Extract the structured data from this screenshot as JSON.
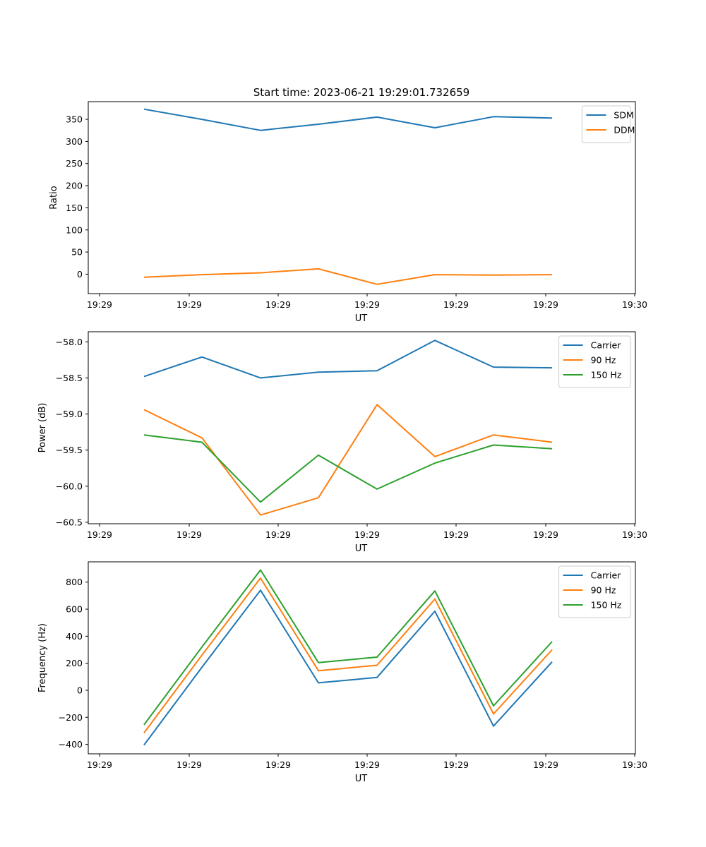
{
  "figure_title": "Start time: 2023-06-21 19:29:01.732659",
  "colors": {
    "blue": "#1f77b4",
    "orange": "#ff7f0e",
    "green": "#2ca02c"
  },
  "chart_data": [
    {
      "type": "line",
      "title": "Start time: 2023-06-21 19:29:01.732659",
      "xlabel": "UT",
      "ylabel": "Ratio",
      "x_tick_labels": [
        "19:29",
        "19:29",
        "19:29",
        "19:29",
        "19:29",
        "19:29",
        "19:29",
        "19:30"
      ],
      "y_ticks": [
        0,
        50,
        100,
        150,
        200,
        250,
        300,
        350
      ],
      "y_tick_labels": [
        "0",
        "50",
        "100",
        "150",
        "200",
        "250",
        "300",
        "350"
      ],
      "ylim": [
        -44,
        390
      ],
      "legend_position": "top-right",
      "series": [
        {
          "name": "SDM",
          "color": "#1f77b4",
          "values": [
            373,
            350,
            325,
            339,
            355,
            331,
            356,
            353
          ]
        },
        {
          "name": "DDM",
          "color": "#ff7f0e",
          "values": [
            -7,
            -1,
            3,
            12,
            -23,
            -1,
            -2,
            -1
          ]
        }
      ]
    },
    {
      "type": "line",
      "title": "",
      "xlabel": "UT",
      "ylabel": "Power (dB)",
      "x_tick_labels": [
        "19:29",
        "19:29",
        "19:29",
        "19:29",
        "19:29",
        "19:29",
        "19:29",
        "19:30"
      ],
      "y_ticks": [
        -60.5,
        -60.0,
        -59.5,
        -59.0,
        -58.5,
        -58.0
      ],
      "y_tick_labels": [
        "−60.5",
        "−60.0",
        "−59.5",
        "−59.0",
        "−58.5",
        "−58.0"
      ],
      "ylim": [
        -60.52,
        -57.86
      ],
      "legend_position": "top-right",
      "series": [
        {
          "name": "Carrier",
          "color": "#1f77b4",
          "values": [
            -58.48,
            -58.21,
            -58.5,
            -58.42,
            -58.4,
            -57.98,
            -58.35,
            -58.36
          ]
        },
        {
          "name": "90 Hz",
          "color": "#ff7f0e",
          "values": [
            -58.94,
            -59.33,
            -60.4,
            -60.16,
            -58.87,
            -59.59,
            -59.29,
            -59.39
          ]
        },
        {
          "name": "150 Hz",
          "color": "#2ca02c",
          "values": [
            -59.29,
            -59.39,
            -60.22,
            -59.57,
            -60.04,
            -59.68,
            -59.43,
            -59.48
          ]
        }
      ]
    },
    {
      "type": "line",
      "title": "",
      "xlabel": "UT",
      "ylabel": "Frequency (Hz)",
      "x_tick_labels": [
        "19:29",
        "19:29",
        "19:29",
        "19:29",
        "19:29",
        "19:29",
        "19:29",
        "19:30"
      ],
      "y_ticks": [
        -400,
        -200,
        0,
        200,
        400,
        600,
        800
      ],
      "y_tick_labels": [
        "−400",
        "−200",
        "0",
        "200",
        "400",
        "600",
        "800"
      ],
      "ylim": [
        -470,
        950
      ],
      "legend_position": "top-right",
      "series": [
        {
          "name": "Carrier",
          "color": "#1f77b4",
          "values": [
            -405,
            170,
            740,
            55,
            95,
            585,
            -265,
            210
          ]
        },
        {
          "name": "90 Hz",
          "color": "#ff7f0e",
          "values": [
            -315,
            260,
            830,
            145,
            185,
            675,
            -175,
            300
          ]
        },
        {
          "name": "150 Hz",
          "color": "#2ca02c",
          "values": [
            -255,
            320,
            890,
            205,
            245,
            735,
            -115,
            360
          ]
        }
      ]
    }
  ]
}
